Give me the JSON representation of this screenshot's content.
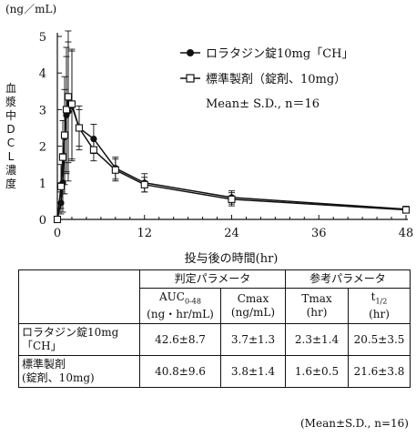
{
  "chart_data": {
    "type": "line",
    "ylabel_units": "(ng／mL)",
    "ylabel": [
      "血",
      "漿",
      "中",
      "D",
      "C",
      "L",
      "濃",
      "度"
    ],
    "xlabel": "投与後の時間(hr)",
    "xlim": [
      0,
      48
    ],
    "ylim": [
      0,
      5
    ],
    "xticks": [
      0,
      12,
      24,
      36,
      48
    ],
    "yticks": [
      0,
      1,
      2,
      3,
      4,
      5
    ],
    "legend_note": "Mean± S.D., n＝16",
    "series": [
      {
        "name": "ロラタジン錠10mg「CH」",
        "marker": "filled-circle",
        "x": [
          0,
          0.5,
          0.75,
          1.0,
          1.25,
          1.5,
          2.0,
          3.0,
          5.0,
          8.0,
          12.0,
          24.0,
          48.0
        ],
        "y": [
          0.0,
          0.45,
          1.0,
          2.25,
          2.85,
          2.95,
          3.1,
          2.5,
          2.2,
          1.4,
          1.0,
          0.6,
          0.28
        ],
        "sd": [
          0.0,
          0.3,
          0.8,
          1.3,
          1.6,
          1.9,
          1.5,
          0.6,
          0.4,
          0.3,
          0.25,
          0.18,
          0.08
        ]
      },
      {
        "name": "標準製剤（錠剤、10mg）",
        "marker": "open-square",
        "x": [
          0,
          0.5,
          0.75,
          1.0,
          1.25,
          1.5,
          2.0,
          3.0,
          5.0,
          8.0,
          12.0,
          24.0,
          48.0
        ],
        "y": [
          0.0,
          0.9,
          1.7,
          2.3,
          3.0,
          3.35,
          3.15,
          2.5,
          1.9,
          1.35,
          0.95,
          0.55,
          0.26
        ],
        "sd": [
          0.0,
          0.6,
          1.0,
          1.6,
          1.7,
          1.8,
          1.5,
          0.5,
          0.3,
          0.3,
          0.2,
          0.18,
          0.07
        ]
      }
    ]
  },
  "table": {
    "group_headers": [
      "判定パラメータ",
      "参考パラメータ"
    ],
    "column_headers": [
      {
        "main": "AUC",
        "sub": "0-48",
        "unit": "(ng・hr/mL)"
      },
      {
        "main": "Cmax",
        "sub": "",
        "unit": "(ng/mL)"
      },
      {
        "main": "Tmax",
        "sub": "",
        "unit": "(hr)"
      },
      {
        "main": "t",
        "sub": "1/2",
        "unit": "(hr)"
      }
    ],
    "rows": [
      {
        "label_line1": "ロラタジン錠10mg",
        "label_line2": "「CH」",
        "values": [
          "42.6±8.7",
          "3.7±1.3",
          "2.3±1.4",
          "20.5±3.5"
        ]
      },
      {
        "label_line1": "標準製剤",
        "label_line2": "(錠剤、10mg)",
        "values": [
          "40.8±9.6",
          "3.8±1.4",
          "1.6±0.5",
          "21.6±3.8"
        ]
      }
    ],
    "footnote": "(Mean±S.D., n=16)"
  }
}
